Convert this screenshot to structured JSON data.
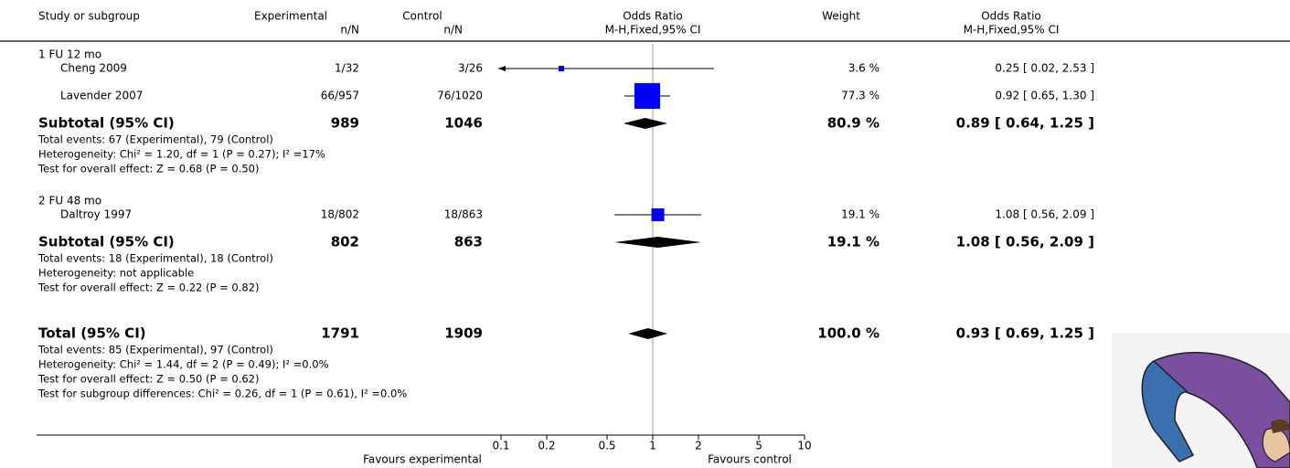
{
  "chart_data": {
    "type": "forest",
    "headers": {
      "study": "Study or subgroup",
      "experimental": "Experimental",
      "experimental_sub": "n/N",
      "control": "Control",
      "control_sub": "n/N",
      "plot": "Odds Ratio",
      "plot_sub": "M-H,Fixed,95% CI",
      "weight": "Weight",
      "effect": "Odds Ratio",
      "effect_sub": "M-H,Fixed,95% CI"
    },
    "subgroups": [
      {
        "label": "1 FU 12 mo",
        "studies": [
          {
            "name": "Cheng 2009",
            "experimental": "1/32",
            "control": "3/26",
            "weight": 3.6,
            "weight_label": "3.6 %",
            "or": 0.25,
            "lo": 0.02,
            "hi": 2.53,
            "ci_label": "0.25 [ 0.02, 2.53 ]"
          },
          {
            "name": "Lavender 2007",
            "experimental": "66/957",
            "control": "76/1020",
            "weight": 77.3,
            "weight_label": "77.3 %",
            "or": 0.92,
            "lo": 0.65,
            "hi": 1.3,
            "ci_label": "0.92 [ 0.65, 1.30 ]"
          }
        ],
        "subtotal": {
          "label": "Subtotal (95% CI)",
          "experimental": 989,
          "control": 1046,
          "weight": 80.9,
          "weight_label": "80.9 %",
          "or": 0.89,
          "lo": 0.64,
          "hi": 1.25,
          "ci_label": "0.89 [ 0.64, 1.25 ]",
          "notes": [
            "Total events: 67 (Experimental), 79 (Control)",
            "Heterogeneity: Chi² = 1.20, df = 1 (P = 0.27); I² =17%",
            "Test for overall effect: Z = 0.68 (P = 0.50)"
          ]
        }
      },
      {
        "label": "2 FU 48 mo",
        "studies": [
          {
            "name": "Daltroy 1997",
            "experimental": "18/802",
            "control": "18/863",
            "weight": 19.1,
            "weight_label": "19.1 %",
            "or": 1.08,
            "lo": 0.56,
            "hi": 2.09,
            "ci_label": "1.08 [ 0.56, 2.09 ]"
          }
        ],
        "subtotal": {
          "label": "Subtotal (95% CI)",
          "experimental": 802,
          "control": 863,
          "weight": 19.1,
          "weight_label": "19.1 %",
          "or": 1.08,
          "lo": 0.56,
          "hi": 2.09,
          "ci_label": "1.08 [ 0.56, 2.09 ]",
          "notes": [
            "Total events: 18 (Experimental), 18 (Control)",
            "Heterogeneity: not applicable",
            "Test for overall effect: Z = 0.22 (P = 0.82)"
          ]
        }
      }
    ],
    "total": {
      "label": "Total (95% CI)",
      "experimental": 1791,
      "control": 1909,
      "weight": 100.0,
      "weight_label": "100.0 %",
      "or": 0.93,
      "lo": 0.69,
      "hi": 1.25,
      "ci_label": "0.93 [ 0.69, 1.25 ]",
      "notes": [
        "Total events: 85 (Experimental), 97 (Control)",
        "Heterogeneity: Chi² = 1.44, df = 2 (P = 0.49); I² =0.0%",
        "Test for overall effect: Z = 0.50 (P = 0.62)",
        "Test for subgroup differences: Chi² = 0.26, df = 1 (P = 0.61), I² =0.0%"
      ]
    },
    "xlim": [
      0.1,
      10
    ],
    "xticks": [
      0.1,
      0.2,
      0.5,
      1,
      2,
      5,
      10
    ],
    "log_scale": true,
    "favours_left": "Favours experimental",
    "favours_right": "Favours control",
    "color": "#0000ff",
    "diamond_color": "#000000"
  }
}
